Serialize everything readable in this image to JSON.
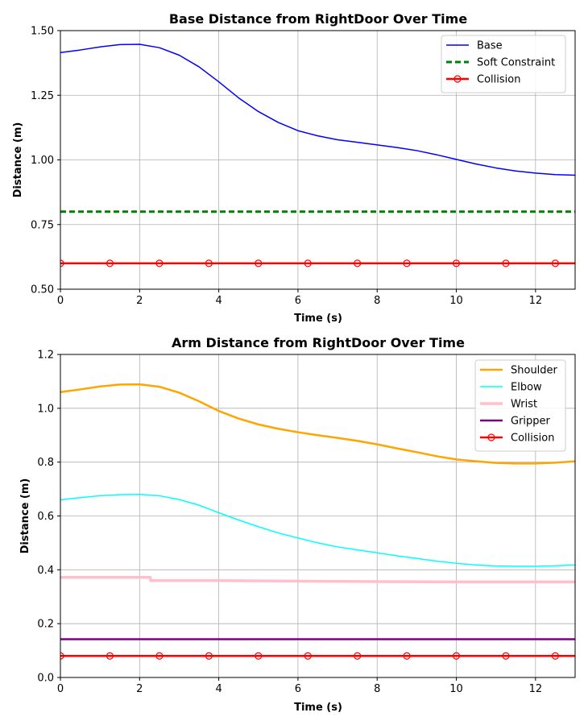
{
  "chart_data": [
    {
      "type": "line",
      "title": "Base Distance from RightDoor Over Time",
      "xlabel": "Time (s)",
      "ylabel": "Distance (m)",
      "xlim": [
        0,
        13
      ],
      "ylim": [
        0.5,
        1.5
      ],
      "xticks": [
        "0",
        "2",
        "4",
        "6",
        "8",
        "10",
        "12"
      ],
      "yticks": [
        "0.50",
        "0.75",
        "1.00",
        "1.25",
        "1.50"
      ],
      "grid": true,
      "legend_position": "top-right",
      "series": [
        {
          "name": "Base",
          "color": "#0000ff",
          "style": "solid",
          "x": [
            0,
            0.5,
            1,
            1.5,
            2,
            2.5,
            3,
            3.5,
            4,
            4.5,
            5,
            5.5,
            6,
            6.5,
            7,
            7.5,
            8,
            8.5,
            9,
            9.5,
            10,
            10.5,
            11,
            11.5,
            12,
            12.5,
            13
          ],
          "y": [
            1.415,
            1.425,
            1.437,
            1.446,
            1.447,
            1.434,
            1.405,
            1.36,
            1.302,
            1.24,
            1.187,
            1.145,
            1.113,
            1.093,
            1.078,
            1.068,
            1.058,
            1.048,
            1.036,
            1.02,
            1.002,
            0.984,
            0.969,
            0.957,
            0.949,
            0.943,
            0.941
          ]
        },
        {
          "name": "Soft Constraint",
          "color": "#008000",
          "style": "dashed",
          "x": [
            0,
            13
          ],
          "y": [
            0.8,
            0.8
          ]
        },
        {
          "name": "Collision",
          "color": "#ff0000",
          "style": "solid-markers",
          "x": [
            0,
            13
          ],
          "y": [
            0.6,
            0.6
          ],
          "markers_x": [
            0,
            1.25,
            2.5,
            3.75,
            5,
            6.25,
            7.5,
            8.75,
            10,
            11.25,
            12.5
          ]
        }
      ]
    },
    {
      "type": "line",
      "title": "Arm Distance from RightDoor Over Time",
      "xlabel": "Time (s)",
      "ylabel": "Distance (m)",
      "xlim": [
        0,
        13
      ],
      "ylim": [
        0.0,
        1.2
      ],
      "xticks": [
        "0",
        "2",
        "4",
        "6",
        "8",
        "10",
        "12"
      ],
      "yticks": [
        "0.0",
        "0.2",
        "0.4",
        "0.6",
        "0.8",
        "1.0",
        "1.2"
      ],
      "grid": true,
      "legend_position": "top-right",
      "series": [
        {
          "name": "Shoulder",
          "color": "#ffa500",
          "style": "solid",
          "x": [
            0,
            0.5,
            1,
            1.5,
            2,
            2.5,
            3,
            3.5,
            4,
            4.5,
            5,
            5.5,
            6,
            6.5,
            7,
            7.5,
            8,
            8.5,
            9,
            9.5,
            10,
            10.5,
            11,
            11.5,
            12,
            12.5,
            13
          ],
          "y": [
            1.06,
            1.07,
            1.081,
            1.088,
            1.089,
            1.08,
            1.058,
            1.026,
            0.99,
            0.962,
            0.94,
            0.924,
            0.911,
            0.9,
            0.89,
            0.879,
            0.866,
            0.851,
            0.837,
            0.822,
            0.81,
            0.803,
            0.797,
            0.795,
            0.795,
            0.798,
            0.803
          ]
        },
        {
          "name": "Elbow",
          "color": "#00ffff",
          "style": "solid",
          "x": [
            0,
            0.5,
            1,
            1.5,
            2,
            2.5,
            3,
            3.5,
            4,
            4.5,
            5,
            5.5,
            6,
            6.5,
            7,
            7.5,
            8,
            8.5,
            9,
            9.5,
            10,
            10.5,
            11,
            11.5,
            12,
            12.5,
            13
          ],
          "y": [
            0.66,
            0.668,
            0.675,
            0.679,
            0.68,
            0.675,
            0.661,
            0.64,
            0.612,
            0.585,
            0.56,
            0.537,
            0.518,
            0.5,
            0.485,
            0.474,
            0.463,
            0.452,
            0.442,
            0.432,
            0.424,
            0.418,
            0.414,
            0.413,
            0.413,
            0.415,
            0.418
          ]
        },
        {
          "name": "Wrist",
          "color": "#ffc0cb",
          "style": "solid",
          "x": [
            0,
            2.27,
            2.28,
            4,
            6,
            8,
            10,
            13
          ],
          "y": [
            0.372,
            0.372,
            0.36,
            0.36,
            0.358,
            0.356,
            0.355,
            0.355
          ]
        },
        {
          "name": "Gripper",
          "color": "#800080",
          "style": "solid",
          "x": [
            0,
            13
          ],
          "y": [
            0.142,
            0.142
          ]
        },
        {
          "name": "Collision",
          "color": "#ff0000",
          "style": "solid-markers",
          "x": [
            0,
            13
          ],
          "y": [
            0.08,
            0.08
          ],
          "markers_x": [
            0,
            1.25,
            2.5,
            3.75,
            5,
            6.25,
            7.5,
            8.75,
            10,
            11.25,
            12.5
          ]
        }
      ]
    }
  ]
}
